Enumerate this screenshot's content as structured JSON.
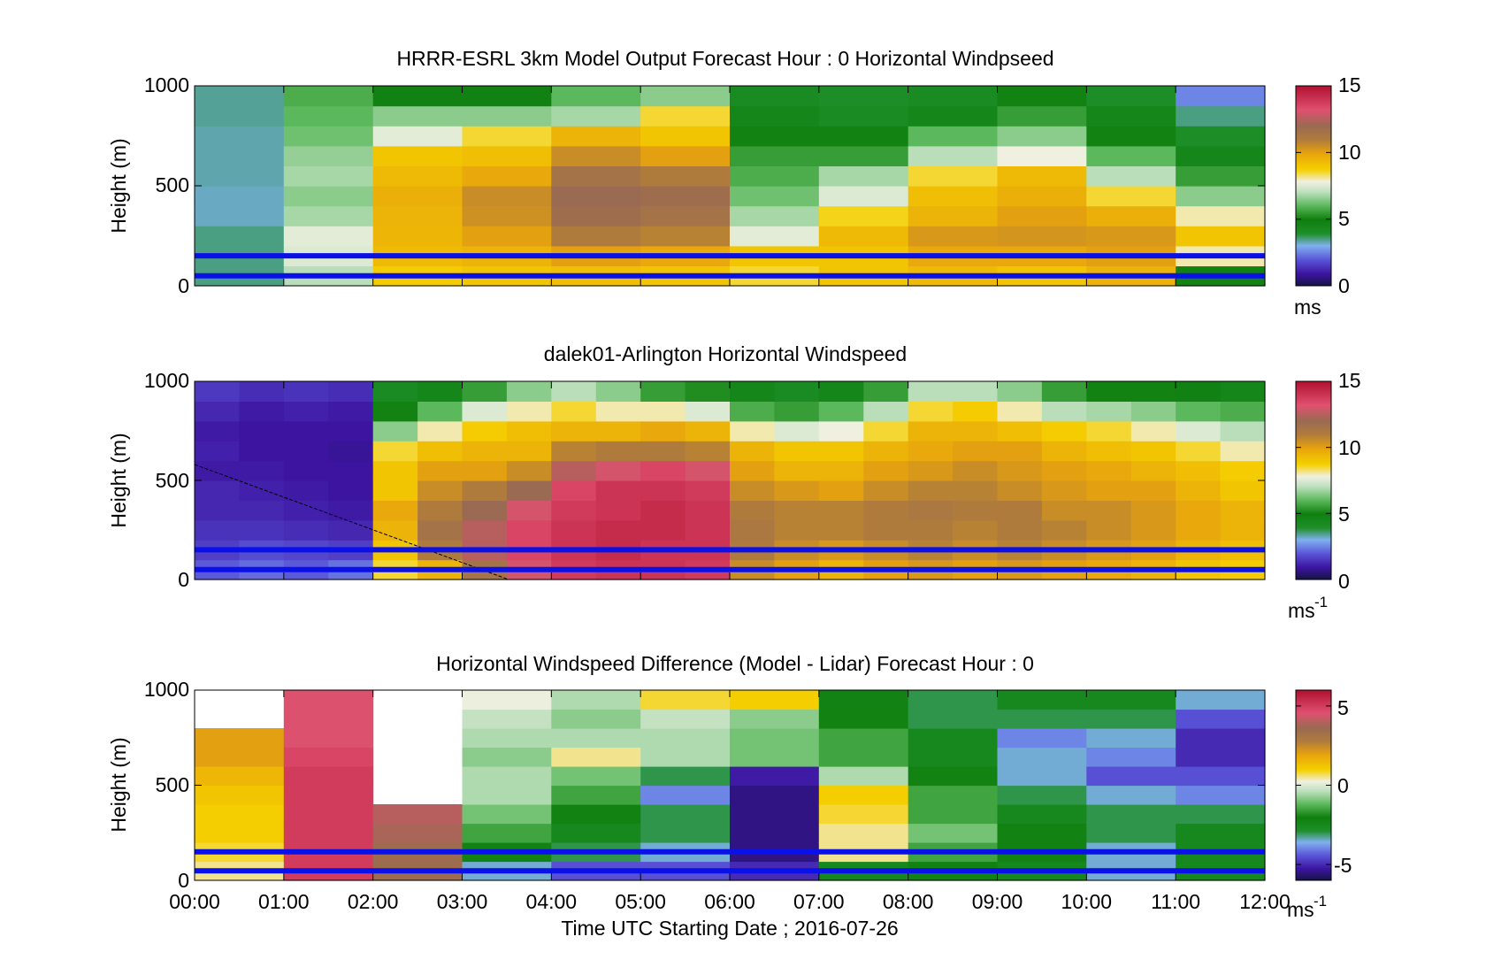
{
  "chart_data": [
    {
      "type": "heatmap",
      "title": "HRRR-ESRL 3km Model Output   Forecast Hour : 0 Horizontal Windpseed",
      "ylabel": "Height (m)",
      "ylim": [
        0,
        1000
      ],
      "yticks": [
        "0",
        "500",
        "1000"
      ],
      "xlim": [
        0,
        12
      ],
      "colorbar": {
        "ticks": [
          "0",
          "5",
          "10",
          "15"
        ],
        "tick_values": [
          0,
          5,
          10,
          15
        ],
        "range": [
          0,
          15
        ],
        "unit": "ms",
        "unit_sup": ""
      },
      "heights": [
        50,
        150,
        250,
        350,
        450,
        550,
        650,
        750,
        850,
        950
      ],
      "columns": [
        {
          "hour": 0,
          "values": [
            3.5,
            3.5,
            3.5,
            3.2,
            3.2,
            3.3,
            3.3,
            3.3,
            3.4,
            3.4
          ]
        },
        {
          "hour": 1,
          "values": [
            7.0,
            7.5,
            7.6,
            6.8,
            6.5,
            6.8,
            6.6,
            6.2,
            6.0,
            5.8
          ]
        },
        {
          "hour": 2,
          "values": [
            8.8,
            9.3,
            9.4,
            9.5,
            9.6,
            9.3,
            9.0,
            7.6,
            6.5,
            4.8
          ]
        },
        {
          "hour": 3,
          "values": [
            9.0,
            9.5,
            10.0,
            10.4,
            10.5,
            9.8,
            9.2,
            8.5,
            6.5,
            4.8
          ]
        },
        {
          "hour": 4,
          "values": [
            9.2,
            10.0,
            11.0,
            11.8,
            12.0,
            11.5,
            10.5,
            9.5,
            6.8,
            6.0
          ]
        },
        {
          "hour": 5,
          "values": [
            9.0,
            9.8,
            10.8,
            11.5,
            11.8,
            11.0,
            10.0,
            9.0,
            8.5,
            6.5
          ]
        },
        {
          "hour": 6,
          "values": [
            8.5,
            9.0,
            7.6,
            6.8,
            6.2,
            5.8,
            5.5,
            5.0,
            4.5,
            4.2
          ]
        },
        {
          "hour": 7,
          "values": [
            9.0,
            9.0,
            9.3,
            8.6,
            7.5,
            6.8,
            5.5,
            5.0,
            4.2,
            4.0
          ]
        },
        {
          "hour": 8,
          "values": [
            9.3,
            9.8,
            10.2,
            9.5,
            9.2,
            8.5,
            7.0,
            6.0,
            4.5,
            4.2
          ]
        },
        {
          "hour": 9,
          "values": [
            9.0,
            9.8,
            10.3,
            10.0,
            9.6,
            9.3,
            7.8,
            6.5,
            5.5,
            5.0
          ]
        },
        {
          "hour": 10,
          "values": [
            9.5,
            10.0,
            10.2,
            9.6,
            8.5,
            7.0,
            6.0,
            5.0,
            4.5,
            4.0
          ]
        },
        {
          "hour": 11,
          "values": [
            5.0,
            8.0,
            9.0,
            8.0,
            6.5,
            5.5,
            4.5,
            4.0,
            3.5,
            2.5
          ]
        }
      ],
      "reference_lines_m": [
        50,
        150
      ]
    },
    {
      "type": "heatmap",
      "title": "dalek01-Arlington  Horizontal Windspeed",
      "ylabel": "Height (m)",
      "ylim": [
        0,
        1000
      ],
      "yticks": [
        "0",
        "500",
        "1000"
      ],
      "xlim": [
        0,
        12
      ],
      "colorbar": {
        "ticks": [
          "0",
          "5",
          "10",
          "15"
        ],
        "tick_values": [
          0,
          5,
          10,
          15
        ],
        "range": [
          0,
          15
        ],
        "unit": "ms",
        "unit_sup": "-1"
      },
      "heights": [
        50,
        150,
        250,
        350,
        450,
        550,
        650,
        750,
        850,
        950
      ],
      "columns": [
        {
          "hour": 0.0,
          "values": [
            2.0,
            1.6,
            1.4,
            1.2,
            1.2,
            1.0,
            1.1,
            1.0,
            1.2,
            1.5
          ]
        },
        {
          "hour": 0.5,
          "values": [
            2.2,
            1.8,
            1.4,
            1.2,
            1.1,
            1.0,
            0.9,
            0.9,
            1.0,
            1.3
          ]
        },
        {
          "hour": 1.0,
          "values": [
            2.0,
            1.7,
            1.3,
            1.1,
            1.0,
            0.9,
            0.9,
            0.9,
            1.1,
            1.4
          ]
        },
        {
          "hour": 1.5,
          "values": [
            2.3,
            1.6,
            1.2,
            1.0,
            0.9,
            0.9,
            0.8,
            0.9,
            1.0,
            1.3
          ]
        },
        {
          "hour": 2.0,
          "values": [
            8.5,
            9.0,
            9.5,
            9.8,
            9.0,
            9.0,
            8.5,
            6.5,
            5.0,
            4.2
          ]
        },
        {
          "hour": 2.5,
          "values": [
            9.5,
            11.0,
            11.5,
            11.0,
            10.5,
            10.0,
            9.2,
            8.0,
            6.0,
            4.5
          ]
        },
        {
          "hour": 3.0,
          "values": [
            11.5,
            12.5,
            12.5,
            12.0,
            11.0,
            10.0,
            9.5,
            8.8,
            7.5,
            5.5
          ]
        },
        {
          "hour": 3.5,
          "values": [
            13.0,
            13.5,
            13.5,
            13.0,
            12.0,
            10.5,
            9.5,
            9.2,
            8.0,
            6.5
          ]
        },
        {
          "hour": 4.0,
          "values": [
            13.8,
            14.0,
            14.0,
            13.8,
            13.5,
            12.5,
            10.8,
            9.5,
            8.5,
            7.0
          ]
        },
        {
          "hour": 4.5,
          "values": [
            14.0,
            14.2,
            14.2,
            14.0,
            14.0,
            13.0,
            11.0,
            9.5,
            8.0,
            6.5
          ]
        },
        {
          "hour": 5.0,
          "values": [
            14.0,
            14.0,
            14.2,
            14.2,
            14.0,
            13.5,
            11.0,
            9.8,
            8.0,
            5.5
          ]
        },
        {
          "hour": 5.5,
          "values": [
            13.8,
            14.0,
            14.0,
            14.0,
            13.8,
            13.0,
            10.8,
            9.5,
            7.5,
            5.2
          ]
        },
        {
          "hour": 6.0,
          "values": [
            10.5,
            11.0,
            11.2,
            11.0,
            10.5,
            10.0,
            9.5,
            8.0,
            5.8,
            4.5
          ]
        },
        {
          "hour": 6.5,
          "values": [
            10.0,
            10.5,
            10.8,
            10.8,
            10.2,
            9.5,
            9.0,
            7.5,
            5.5,
            4.2
          ]
        },
        {
          "hour": 7.0,
          "values": [
            9.5,
            10.2,
            10.8,
            10.8,
            10.0,
            9.5,
            9.0,
            7.8,
            6.0,
            4.5
          ]
        },
        {
          "hour": 7.5,
          "values": [
            10.0,
            10.5,
            11.0,
            11.0,
            10.5,
            10.0,
            9.5,
            8.5,
            7.0,
            5.5
          ]
        },
        {
          "hour": 8.0,
          "values": [
            10.2,
            10.8,
            11.0,
            11.2,
            10.8,
            10.2,
            9.8,
            9.5,
            8.5,
            7.0
          ]
        },
        {
          "hour": 8.5,
          "values": [
            10.0,
            10.5,
            10.8,
            11.0,
            10.8,
            10.5,
            10.0,
            9.5,
            8.8,
            7.0
          ]
        },
        {
          "hour": 9.0,
          "values": [
            10.2,
            10.8,
            11.0,
            11.0,
            10.5,
            10.2,
            10.0,
            9.2,
            8.0,
            6.5
          ]
        },
        {
          "hour": 9.5,
          "values": [
            10.0,
            10.5,
            10.8,
            10.5,
            10.2,
            10.0,
            9.5,
            8.8,
            7.0,
            5.5
          ]
        },
        {
          "hour": 10.0,
          "values": [
            9.8,
            10.2,
            10.5,
            10.5,
            10.0,
            9.8,
            9.2,
            8.5,
            6.8,
            5.0
          ]
        },
        {
          "hour": 10.5,
          "values": [
            9.5,
            10.0,
            10.2,
            10.2,
            10.0,
            9.5,
            9.0,
            8.0,
            6.5,
            5.0
          ]
        },
        {
          "hour": 11.0,
          "values": [
            9.0,
            9.5,
            9.8,
            9.8,
            9.5,
            9.2,
            8.5,
            7.5,
            6.0,
            4.8
          ]
        },
        {
          "hour": 11.5,
          "values": [
            8.8,
            9.2,
            9.5,
            9.5,
            9.0,
            8.8,
            8.0,
            7.0,
            5.8,
            4.5
          ]
        }
      ],
      "reference_lines_m": [
        50,
        150
      ]
    },
    {
      "type": "heatmap",
      "title": "Horizontal Windspeed Difference (Model - Lidar) Forecast Hour : 0",
      "ylabel": "Height (m)",
      "xlabel": "Time UTC  Starting Date ; 2016-07-26",
      "ylim": [
        0,
        1000
      ],
      "yticks": [
        "0",
        "500",
        "1000"
      ],
      "xlim": [
        0,
        12
      ],
      "xticks": [
        "00:00",
        "01:00",
        "02:00",
        "03:00",
        "04:00",
        "05:00",
        "06:00",
        "07:00",
        "08:00",
        "09:00",
        "10:00",
        "11:00",
        "12:00"
      ],
      "colorbar": {
        "ticks": [
          "-5",
          "0",
          "5"
        ],
        "tick_values": [
          -5,
          0,
          5
        ],
        "range": [
          -6,
          6
        ],
        "unit": "ms",
        "unit_sup": "-1"
      },
      "heights": [
        50,
        150,
        250,
        350,
        450,
        550,
        650,
        750,
        850,
        950
      ],
      "columns": [
        {
          "hour": 0,
          "values": [
            0.5,
            0.8,
            1.0,
            1.0,
            1.2,
            1.5,
            2.0,
            2.0,
            null,
            null
          ]
        },
        {
          "hour": 1,
          "values": [
            5.0,
            5.0,
            5.0,
            5.0,
            5.0,
            5.0,
            4.8,
            4.5,
            4.5,
            4.5
          ]
        },
        {
          "hour": 2,
          "values": [
            3.5,
            3.5,
            3.8,
            4.0,
            null,
            null,
            null,
            null,
            null,
            null
          ]
        },
        {
          "hour": 3,
          "values": [
            -3.5,
            -2.0,
            -1.5,
            -1.0,
            -0.5,
            -0.5,
            -0.8,
            -0.5,
            -0.3,
            0.2
          ]
        },
        {
          "hour": 4,
          "values": [
            -4.5,
            -3.0,
            -2.5,
            -2.0,
            -1.5,
            -1.0,
            0.5,
            -0.5,
            -0.8,
            -0.5
          ]
        },
        {
          "hour": 5,
          "values": [
            -4.5,
            -3.5,
            -3.0,
            -3.0,
            -4.0,
            -3.0,
            -0.5,
            -0.5,
            -0.3,
            0.8
          ]
        },
        {
          "hour": 6,
          "values": [
            -5.0,
            -5.5,
            -5.5,
            -5.5,
            -5.5,
            -5.2,
            -1.0,
            -1.0,
            -0.8,
            1.0
          ]
        },
        {
          "hour": 7,
          "values": [
            -2.5,
            0.5,
            0.5,
            0.8,
            1.0,
            -0.5,
            -1.5,
            -1.5,
            -2.0,
            -2.2
          ]
        },
        {
          "hour": 8,
          "values": [
            -2.0,
            -1.5,
            -1.0,
            -1.5,
            -1.5,
            -2.0,
            -2.5,
            -2.5,
            -3.0,
            -3.0
          ]
        },
        {
          "hour": 9,
          "values": [
            -2.5,
            -2.0,
            -2.0,
            -2.5,
            -3.0,
            -3.5,
            -3.5,
            -4.0,
            -3.0,
            -2.5
          ]
        },
        {
          "hour": 10,
          "values": [
            -3.5,
            -3.5,
            -3.0,
            -3.0,
            -3.5,
            -4.5,
            -4.0,
            -3.5,
            -3.0,
            -2.5
          ]
        },
        {
          "hour": 11,
          "values": [
            -2.5,
            -2.5,
            -2.5,
            -3.0,
            -4.0,
            -4.5,
            -5.0,
            -5.0,
            -4.5,
            -3.5
          ]
        }
      ],
      "reference_lines_m": [
        50,
        150
      ]
    }
  ]
}
